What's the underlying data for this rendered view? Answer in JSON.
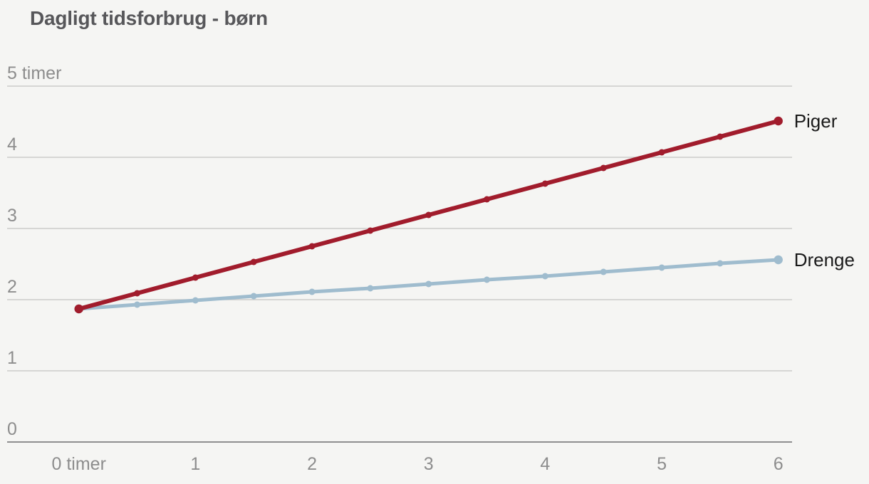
{
  "theme": {
    "background": "#f5f5f3",
    "title_color": "#57575a",
    "gridline_color": "#cbcbc9",
    "axis_line_color": "#8f8f8f",
    "tick_color": "#8d8d8d",
    "series_label_color": "#1a1a1a"
  },
  "chart_data": {
    "type": "line",
    "title": "Dagligt tidsforbrug - børn",
    "xlabel": "timer",
    "ylabel": "timer",
    "xlim": [
      0,
      6
    ],
    "ylim": [
      0,
      5
    ],
    "grid": "horizontal-only",
    "legend_position": "inline-end-labels",
    "x": [
      0,
      0.5,
      1,
      1.5,
      2,
      2.5,
      3,
      3.5,
      4,
      4.5,
      5,
      5.5,
      6
    ],
    "series": [
      {
        "name": "Piger",
        "color": "#a11c2c",
        "values": [
          1.87,
          2.09,
          2.31,
          2.53,
          2.75,
          2.97,
          3.19,
          3.41,
          3.63,
          3.85,
          4.07,
          4.29,
          4.51
        ]
      },
      {
        "name": "Drenge",
        "color": "#9fbcce",
        "values": [
          1.87,
          1.93,
          1.99,
          2.05,
          2.11,
          2.16,
          2.22,
          2.28,
          2.33,
          2.39,
          2.45,
          2.51,
          2.56
        ]
      }
    ],
    "x_ticks": [
      {
        "value": 0,
        "label": "0 timer"
      },
      {
        "value": 1,
        "label": "1"
      },
      {
        "value": 2,
        "label": "2"
      },
      {
        "value": 3,
        "label": "3"
      },
      {
        "value": 4,
        "label": "4"
      },
      {
        "value": 5,
        "label": "5"
      },
      {
        "value": 6,
        "label": "6"
      }
    ],
    "y_ticks": [
      {
        "value": 0,
        "label": "0"
      },
      {
        "value": 1,
        "label": "1"
      },
      {
        "value": 2,
        "label": "2"
      },
      {
        "value": 3,
        "label": "3"
      },
      {
        "value": 4,
        "label": "4"
      },
      {
        "value": 5,
        "label": "5 timer"
      }
    ]
  }
}
